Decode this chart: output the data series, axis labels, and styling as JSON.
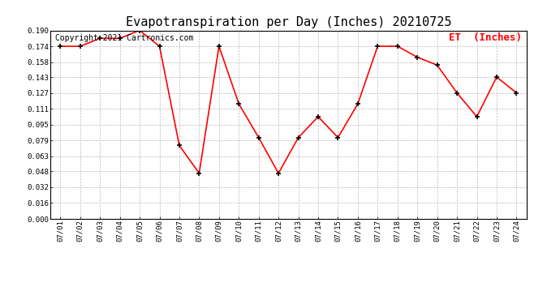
{
  "title": "Evapotranspiration per Day (Inches) 20210725",
  "copyright_text": "Copyright 2021 Cartronics.com",
  "legend_label": "ET  (Inches)",
  "dates": [
    "07/01",
    "07/02",
    "07/03",
    "07/04",
    "07/05",
    "07/06",
    "07/07",
    "07/08",
    "07/09",
    "07/10",
    "07/11",
    "07/12",
    "07/13",
    "07/14",
    "07/15",
    "07/16",
    "07/17",
    "07/18",
    "07/19",
    "07/20",
    "07/21",
    "07/22",
    "07/23",
    "07/24"
  ],
  "xtick_labels": [
    "07/01\n07/\n0",
    "07/02\n07/\n0",
    "07/03\n07/\n0",
    "07/04\n07/\n0",
    "07/05\n07/\n0",
    "07/06\n07/\n0",
    "07/07\n07/\n0",
    "07/08\n07/\n0",
    "07/09\n07/\n0",
    "07/10\n07/\n0",
    "07/11\n07/\n0",
    "07/12\n07/\n0",
    "07/13\n07/\n0",
    "07/14\n07/\n0",
    "07/15\n07/\n0",
    "07/16\n07/\n0",
    "07/17\n07/\n0",
    "07/18\n07/\n0",
    "07/19\n07/\n0",
    "07/20\n07/\n0",
    "07/21\n07/\n0",
    "07/22\n07/\n0",
    "07/23\n07/\n0",
    "07/24\n07/\n0"
  ],
  "values": [
    0.174,
    0.174,
    0.182,
    0.182,
    0.19,
    0.174,
    0.074,
    0.046,
    0.174,
    0.116,
    0.082,
    0.046,
    0.082,
    0.103,
    0.082,
    0.116,
    0.174,
    0.174,
    0.163,
    0.155,
    0.127,
    0.103,
    0.143,
    0.127
  ],
  "ylim": [
    0.0,
    0.19
  ],
  "yticks": [
    0.0,
    0.016,
    0.032,
    0.048,
    0.063,
    0.079,
    0.095,
    0.111,
    0.127,
    0.143,
    0.158,
    0.174,
    0.19
  ],
  "line_color": "red",
  "marker_color": "black",
  "background_color": "white",
  "grid_color": "#bbbbbb",
  "title_fontsize": 11,
  "copyright_fontsize": 7,
  "legend_color": "red",
  "legend_fontsize": 9,
  "tick_label_fontsize": 6.5
}
